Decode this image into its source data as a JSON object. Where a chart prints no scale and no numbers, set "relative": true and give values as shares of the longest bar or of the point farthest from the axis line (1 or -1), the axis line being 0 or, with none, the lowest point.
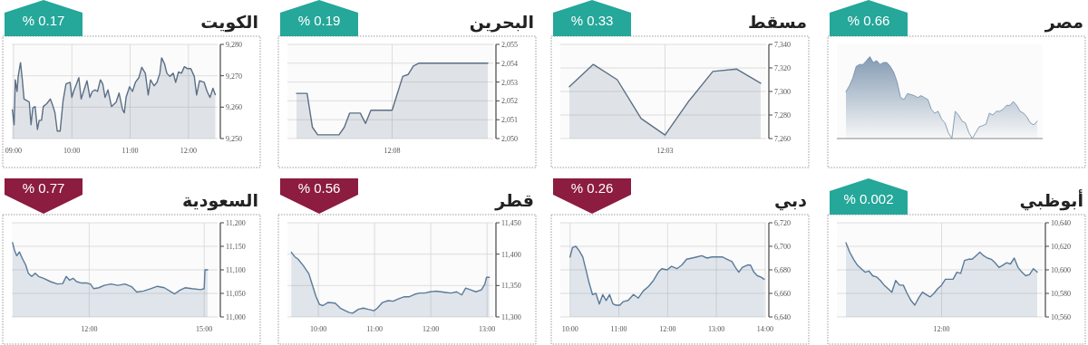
{
  "chart_data": [
    {
      "type": "area",
      "title": "مصر",
      "annotations": [
        "% 0.66"
      ],
      "relative": true,
      "grid": false,
      "categories": [
        null,
        null,
        null,
        null,
        null,
        null,
        null,
        null,
        null,
        null,
        null,
        null,
        null,
        null,
        null,
        null,
        null,
        null,
        null,
        null,
        null,
        null,
        null,
        null,
        null,
        null,
        null,
        null,
        null,
        null,
        null,
        null,
        null,
        null,
        null,
        null,
        null,
        null,
        null,
        null,
        null,
        null,
        null,
        null,
        null,
        null,
        null,
        null,
        null,
        null,
        null,
        null,
        null,
        null,
        null,
        null,
        null
      ],
      "series": [
        {
          "color": "#6f8aa6",
          "values": [
            0.571,
            0.643,
            0.738,
            0.881,
            0.905,
            0.905,
            0.952,
            1,
            0.929,
            0.952,
            0.905,
            0.929,
            0.929,
            0.881,
            0.81,
            0.69,
            0.5,
            0.476,
            0.548,
            0.538,
            0.524,
            0.5,
            0.524,
            0.5,
            0.476,
            0.357,
            0.31,
            0.333,
            0.238,
            0.19,
            0.071,
            0,
            0.333,
            0.286,
            0.214,
            0.19,
            0.071,
            0,
            0.071,
            0.143,
            0.157,
            0.176,
            0.31,
            0.286,
            0.333,
            0.333,
            0.357,
            0.405,
            0.405,
            0.452,
            0.405,
            0.333,
            0.31,
            0.262,
            0.19,
            0.167,
            0.214
          ]
        }
      ]
    },
    {
      "type": "area",
      "title": "مسقط",
      "annotations": [
        "% 0.33"
      ],
      "grid": true,
      "categories": [
        null,
        null,
        null,
        null,
        "12:03",
        null,
        null,
        null,
        null
      ],
      "ylim": [
        7260,
        7340
      ],
      "yticks": [
        {
          "value": 7260,
          "label": "7,260"
        },
        {
          "value": 7280,
          "label": "7,280"
        },
        {
          "value": 7300,
          "label": "7,300"
        },
        {
          "value": 7320,
          "label": "7,320"
        },
        {
          "value": 7340,
          "label": "7,340"
        }
      ],
      "series": [
        {
          "color": "#5b6f86",
          "values": [
            7304,
            7323,
            7310,
            7277,
            7263,
            7292,
            7317,
            7319,
            7307
          ]
        }
      ]
    },
    {
      "type": "area",
      "title": "البحرين",
      "annotations": [
        "% 0.19"
      ],
      "grid": true,
      "categories": [
        null,
        null,
        null,
        null,
        null,
        null,
        null,
        null,
        null,
        null,
        null,
        null,
        null,
        null,
        null,
        null,
        null,
        null,
        "12:08",
        null,
        null,
        null,
        null,
        null,
        null,
        null,
        null,
        null,
        null,
        null,
        null,
        null,
        null,
        null,
        null,
        null,
        null
      ],
      "ylim": [
        2050,
        2055
      ],
      "yticks": [
        {
          "value": 2050,
          "label": "2,050"
        },
        {
          "value": 2051,
          "label": "2,051"
        },
        {
          "value": 2052,
          "label": "2,052"
        },
        {
          "value": 2053,
          "label": "2,053"
        },
        {
          "value": 2054,
          "label": "2,054"
        },
        {
          "value": 2055,
          "label": "2,055"
        }
      ],
      "series": [
        {
          "color": "#5b6f86",
          "values": [
            2052.4,
            2052.4,
            2052.4,
            2050.6,
            2050.2,
            2050.2,
            2050.2,
            2050.2,
            2050.2,
            2050.6,
            2051.35,
            2051.35,
            2051.35,
            2050.8,
            2051.5,
            2051.5,
            2051.5,
            2051.5,
            2051.5,
            2052.4,
            2053.3,
            2053.4,
            2053.85,
            2054,
            2054,
            2054,
            2054,
            2054,
            2054,
            2054,
            2054,
            2054,
            2054,
            2054,
            2054,
            2054,
            2054
          ]
        }
      ]
    },
    {
      "type": "area",
      "title": "الكويت",
      "annotations": [
        "% 0.17"
      ],
      "grid": true,
      "xlim": [
        8.97,
        12.5
      ],
      "xticks": [
        {
          "value": 9,
          "label": "09:00"
        },
        {
          "value": 10,
          "label": "10:00"
        },
        {
          "value": 11,
          "label": "11:00"
        },
        {
          "value": 12,
          "label": "12:00"
        }
      ],
      "ylim": [
        9250,
        9280
      ],
      "yticks": [
        {
          "value": 9250,
          "label": "9,250"
        },
        {
          "value": 9260,
          "label": "9,260"
        },
        {
          "value": 9270,
          "label": "9,270"
        },
        {
          "value": 9280,
          "label": "9,280"
        }
      ],
      "x": [
        8.98,
        9.01,
        9.03,
        9.06,
        9.08,
        9.11,
        9.12,
        9.15,
        9.18,
        9.23,
        9.27,
        9.3,
        9.33,
        9.37,
        9.41,
        9.44,
        9.48,
        9.51,
        9.57,
        9.63,
        9.67,
        9.71,
        9.75,
        9.8,
        9.85,
        9.9,
        9.97,
        10,
        10.03,
        10.09,
        10.12,
        10.16,
        10.21,
        10.26,
        10.31,
        10.35,
        10.4,
        10.44,
        10.49,
        10.53,
        10.57,
        10.62,
        10.68,
        10.76,
        10.81,
        10.87,
        10.9,
        10.93,
        10.99,
        11.04,
        11.09,
        11.15,
        11.2,
        11.26,
        11.31,
        11.35,
        11.41,
        11.46,
        11.51,
        11.54,
        11.59,
        11.63,
        11.68,
        11.74,
        11.78,
        11.83,
        11.88,
        11.93,
        11.98,
        12.04,
        12.1,
        12.14,
        12.19,
        12.27,
        12.32,
        12.37,
        12.42,
        12.46
      ],
      "series": [
        {
          "color": "#5b6f86",
          "values": [
            9259.2,
            9254.4,
            9268.7,
            9265,
            9269.8,
            9273.2,
            9274.2,
            9268.9,
            9262.6,
            9262.1,
            9261.6,
            9254.4,
            9259.7,
            9260.2,
            9252.9,
            9255.8,
            9255.8,
            9260.2,
            9261.1,
            9262.6,
            9260.7,
            9258.2,
            9252.4,
            9252.4,
            9262.1,
            9267.4,
            9267.9,
            9263.1,
            9265,
            9267.9,
            9269.4,
            9262.6,
            9265.5,
            9268.4,
            9263.1,
            9265,
            9265.5,
            9265,
            9268.7,
            9267.4,
            9263.1,
            9265.5,
            9260.2,
            9261.6,
            9264.5,
            9259.2,
            9258.2,
            9263.1,
            9266.5,
            9265,
            9267.9,
            9269.4,
            9272.7,
            9270.8,
            9263.9,
            9268.7,
            9266.8,
            9267.9,
            9270.8,
            9275.7,
            9273.8,
            9270.8,
            9269.8,
            9270.8,
            9267.9,
            9271.2,
            9270.8,
            9272.9,
            9272.3,
            9272.3,
            9269.8,
            9263.9,
            9268.4,
            9267.9,
            9265,
            9263.1,
            9266,
            9264
          ]
        }
      ]
    },
    {
      "type": "area",
      "title": "أبوظبي",
      "annotations": [
        "% 0.002"
      ],
      "grid": true,
      "categories": [
        null,
        null,
        null,
        null,
        null,
        null,
        null,
        null,
        null,
        null,
        null,
        null,
        null,
        null,
        null,
        null,
        null,
        null,
        null,
        null,
        null,
        null,
        null,
        null,
        null,
        "12:00",
        null,
        null,
        null,
        null,
        null,
        null,
        null,
        null,
        null,
        null,
        null,
        null,
        null,
        null,
        null,
        null,
        null,
        null,
        null,
        null,
        null,
        null,
        null,
        null,
        null
      ],
      "ylim": [
        10560,
        10640
      ],
      "yticks": [
        {
          "value": 10560,
          "label": "10,560"
        },
        {
          "value": 10580,
          "label": "10,580"
        },
        {
          "value": 10600,
          "label": "10,600"
        },
        {
          "value": 10620,
          "label": "10,620"
        },
        {
          "value": 10640,
          "label": "10,640"
        }
      ],
      "series": [
        {
          "color": "#5b7a9a",
          "values": [
            10623,
            10615,
            10609,
            10604,
            10601,
            10598,
            10599,
            10595,
            10594,
            10591,
            10587,
            10584,
            10581,
            10591,
            10587,
            10587,
            10580,
            10574,
            10570,
            10576,
            10581,
            10579,
            10577,
            10580,
            10584,
            10587,
            10592,
            10592,
            10592,
            10598,
            10597,
            10608,
            10609,
            10609,
            10612,
            10615,
            10612,
            10610,
            10609,
            10606,
            10602,
            10604,
            10606,
            10605,
            10610,
            10602,
            10598,
            10595,
            10596,
            10601,
            10598
          ]
        }
      ]
    },
    {
      "type": "area",
      "title": "دبي",
      "annotations": [
        "% 0.26"
      ],
      "grid": true,
      "xlim": [
        9.8,
        14.02
      ],
      "xticks": [
        {
          "value": 10,
          "label": "10:00"
        },
        {
          "value": 11,
          "label": "11:00"
        },
        {
          "value": 12,
          "label": "12:00"
        },
        {
          "value": 13,
          "label": "13:00"
        },
        {
          "value": 14,
          "label": "14:00"
        }
      ],
      "ylim": [
        6640,
        6720
      ],
      "yticks": [
        {
          "value": 6640,
          "label": "6,640"
        },
        {
          "value": 6660,
          "label": "6,660"
        },
        {
          "value": 6680,
          "label": "6,680"
        },
        {
          "value": 6700,
          "label": "6,700"
        },
        {
          "value": 6720,
          "label": "6,720"
        }
      ],
      "x": [
        10,
        10.05,
        10.12,
        10.19,
        10.26,
        10.32,
        10.39,
        10.46,
        10.53,
        10.6,
        10.67,
        10.74,
        10.81,
        10.88,
        10.94,
        11.02,
        11.09,
        11.19,
        11.3,
        11.4,
        11.5,
        11.61,
        11.71,
        11.81,
        11.88,
        11.99,
        12.08,
        12.19,
        12.29,
        12.39,
        12.5,
        12.6,
        12.7,
        12.81,
        12.91,
        13.01,
        13.12,
        13.22,
        13.32,
        13.39,
        13.46,
        13.53,
        13.63,
        13.7,
        13.77,
        13.84,
        13.91,
        13.98
      ],
      "series": [
        {
          "color": "#5b7a9a",
          "values": [
            6691,
            6699,
            6700,
            6696,
            6691,
            6681,
            6669,
            6659,
            6660,
            6651,
            6659,
            6654,
            6659,
            6651,
            6650,
            6650,
            6653,
            6654,
            6659,
            6656,
            6662,
            6666,
            6671,
            6678,
            6681,
            6680,
            6683,
            6681,
            6684,
            6689,
            6690,
            6691,
            6692,
            6690,
            6691,
            6691,
            6691,
            6689,
            6687,
            6682,
            6678,
            6682,
            6684,
            6684,
            6678,
            6675,
            6674,
            6672
          ]
        }
      ]
    },
    {
      "type": "area",
      "title": "قطر",
      "annotations": [
        "% 0.56"
      ],
      "grid": true,
      "xlim": [
        9.45,
        13.11
      ],
      "xticks": [
        {
          "value": 10,
          "label": "10:00"
        },
        {
          "value": 11,
          "label": "11:00"
        },
        {
          "value": 12,
          "label": "12:00"
        },
        {
          "value": 13,
          "label": "13:00"
        }
      ],
      "ylim": [
        11300,
        11450
      ],
      "yticks": [
        {
          "value": 11300,
          "label": "11,300"
        },
        {
          "value": 11350,
          "label": "11,350"
        },
        {
          "value": 11400,
          "label": "11,400"
        },
        {
          "value": 11450,
          "label": "11,450"
        }
      ],
      "x": [
        9.52,
        9.58,
        9.64,
        9.73,
        9.83,
        9.89,
        9.96,
        10.02,
        10.08,
        10.17,
        10.3,
        10.39,
        10.48,
        10.55,
        10.61,
        10.71,
        10.8,
        10.89,
        10.99,
        11.05,
        11.14,
        11.24,
        11.33,
        11.43,
        11.52,
        11.61,
        11.71,
        11.8,
        11.89,
        11.99,
        12.08,
        12.18,
        12.27,
        12.36,
        12.46,
        12.55,
        12.62,
        12.71,
        12.8,
        12.9,
        12.96,
        12.99,
        13.04
      ],
      "series": [
        {
          "color": "#5b7a9a",
          "values": [
            11403,
            11396,
            11392,
            11382,
            11369,
            11352,
            11332,
            11320,
            11318,
            11323,
            11322,
            11314,
            11310,
            11307,
            11306,
            11312,
            11314,
            11312,
            11310,
            11314,
            11323,
            11326,
            11325,
            11329,
            11332,
            11332,
            11336,
            11338,
            11338,
            11340,
            11341,
            11340,
            11339,
            11338,
            11340,
            11335,
            11346,
            11343,
            11340,
            11343,
            11352,
            11363,
            11363
          ]
        }
      ]
    },
    {
      "type": "area",
      "title": "السعودية",
      "annotations": [
        "% 0.77"
      ],
      "grid": true,
      "xlim": [
        9.98,
        15.35
      ],
      "xticks": [
        {
          "value": 12,
          "label": "12:00"
        },
        {
          "value": 15,
          "label": "15:00"
        }
      ],
      "ylim": [
        11000,
        11200
      ],
      "yticks": [
        {
          "value": 11000,
          "label": "11,000"
        },
        {
          "value": 11050,
          "label": "11,050"
        },
        {
          "value": 11100,
          "label": "11,100"
        },
        {
          "value": 11150,
          "label": "11,150"
        },
        {
          "value": 11200,
          "label": "11,200"
        }
      ],
      "x": [
        10,
        10.05,
        10.11,
        10.18,
        10.25,
        10.34,
        10.41,
        10.5,
        10.59,
        10.68,
        10.81,
        10.99,
        11.17,
        11.31,
        11.4,
        11.49,
        11.58,
        11.67,
        11.8,
        11.94,
        12.03,
        12.12,
        12.25,
        12.39,
        12.57,
        12.75,
        12.93,
        13.11,
        13.24,
        13.42,
        13.6,
        13.78,
        13.96,
        14.14,
        14.23,
        14.37,
        14.5,
        14.68,
        14.91,
        15,
        15.02,
        15.09
      ],
      "series": [
        {
          "color": "#5b7a9a",
          "values": [
            11158,
            11142,
            11130,
            11138,
            11125,
            11111,
            11093,
            11086,
            11093,
            11086,
            11082,
            11075,
            11070,
            11071,
            11086,
            11078,
            11082,
            11075,
            11072,
            11072,
            11070,
            11060,
            11062,
            11067,
            11070,
            11067,
            11070,
            11064,
            11053,
            11055,
            11060,
            11065,
            11062,
            11053,
            11049,
            11057,
            11062,
            11060,
            11058,
            11060,
            11100,
            11100
          ]
        }
      ]
    }
  ]
}
